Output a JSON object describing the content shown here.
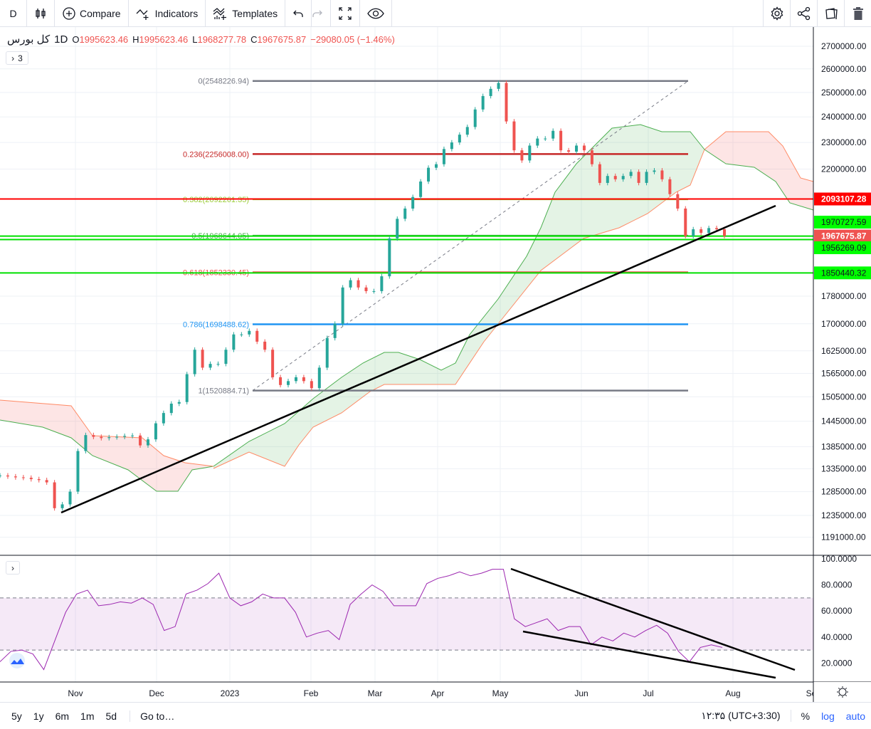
{
  "toolbar": {
    "interval": "D",
    "compare": "Compare",
    "indicators": "Indicators",
    "templates": "Templates"
  },
  "legend": {
    "symbol": "کل بورس",
    "interval": "1D",
    "o_label": "O",
    "o": "1995623.46",
    "h_label": "H",
    "h": "1995623.46",
    "l_label": "L",
    "l": "1968277.78",
    "c_label": "C",
    "c": "1967675.87",
    "change": "−29080.05 (−1.46%)",
    "indicator_count": "3"
  },
  "price_axis": {
    "ticks": [
      "2700000.00",
      "2600000.00",
      "2500000.00",
      "2400000.00",
      "2300000.00",
      "2200000.00",
      "1780000.00",
      "1700000.00",
      "1625000.00",
      "1565000.00",
      "1505000.00",
      "1445000.00",
      "1385000.00",
      "1335000.00",
      "1285000.00",
      "1235000.00",
      "1191000.00"
    ],
    "badges": [
      {
        "text": "2093107.28",
        "price": 2093107.28,
        "bg": "#ff0000",
        "fg": "#ffffff"
      },
      {
        "text": "1970727.59",
        "price": 1970727.59,
        "bg": "#00ff00",
        "fg": "#131722"
      },
      {
        "text": "1967675.87",
        "price": 1967675.87,
        "bg": "#ef5350",
        "fg": "#ffffff"
      },
      {
        "text": "1956269.09",
        "price": 1956269.09,
        "bg": "#00ff00",
        "fg": "#131722"
      },
      {
        "text": "1850440.32",
        "price": 1850440.32,
        "bg": "#00ff00",
        "fg": "#131722"
      }
    ]
  },
  "fib": [
    {
      "label": "0(2548226.94)",
      "price": 2548226.94,
      "color": "#787b86"
    },
    {
      "label": "0.236(2256008.00)",
      "price": 2256008.0,
      "color": "#c62828"
    },
    {
      "label": "0.382(2092261.35)",
      "price": 2092261.35,
      "color": "#9ccc39"
    },
    {
      "label": "0.5(1968644.05)",
      "price": 1968644.05,
      "color": "#4caf50"
    },
    {
      "label": "0.618(1852330.45)",
      "price": 1852330.45,
      "color": "#ef5350"
    },
    {
      "label": "0.786(1698488.62)",
      "price": 1698488.62,
      "color": "#2196f3"
    },
    {
      "label": "1(1520884.71)",
      "price": 1520884.71,
      "color": "#787b86"
    }
  ],
  "closes": [
    1320000,
    1318000,
    1316000,
    1315000,
    1312000,
    1310000,
    1305000,
    1250000,
    1258000,
    1285000,
    1375000,
    1412000,
    1408000,
    1405000,
    1407000,
    1408000,
    1410000,
    1411000,
    1388000,
    1402000,
    1440000,
    1465000,
    1488000,
    1492000,
    1563000,
    1628000,
    1580000,
    1590000,
    1590000,
    1628000,
    1670000,
    1670000,
    1680000,
    1650000,
    1628000,
    1555000,
    1535000,
    1545000,
    1555000,
    1545000,
    1527000,
    1580000,
    1660000,
    1700000,
    1806000,
    1828000,
    1806000,
    1795000,
    1795000,
    1840000,
    1960000,
    2025000,
    2060000,
    2100000,
    2155000,
    2205000,
    2218000,
    2275000,
    2300000,
    2330000,
    2360000,
    2430000,
    2485000,
    2515000,
    2540000,
    2382000,
    2270000,
    2232000,
    2288000,
    2315000,
    2315000,
    2345000,
    2270000,
    2265000,
    2288000,
    2270000,
    2218000,
    2150000,
    2175000,
    2163000,
    2175000,
    2190000,
    2150000,
    2190000,
    2195000,
    2163000,
    2110000,
    2060000,
    1968000,
    1990000,
    1978000,
    1994000,
    1990000,
    1968000
  ],
  "rsi": {
    "ticks": [
      "100.0000",
      "80.0000",
      "60.0000",
      "40.0000",
      "20.0000"
    ],
    "upper_band": 70,
    "lower_band": 30,
    "values": [
      21,
      29,
      30,
      27,
      15,
      37,
      59,
      73,
      76,
      64,
      65,
      67,
      66,
      70,
      65,
      45,
      48,
      73,
      76,
      81,
      89,
      70,
      64,
      67,
      73,
      70,
      70,
      59,
      40,
      43,
      45,
      38,
      65,
      73,
      80,
      75,
      64,
      64,
      64,
      81,
      85,
      87,
      90,
      87,
      89,
      92,
      92,
      54,
      48,
      51,
      54,
      45,
      48,
      48,
      34,
      40,
      37,
      43,
      40,
      45,
      49,
      43,
      29,
      21,
      32,
      34,
      32
    ]
  },
  "time_axis": [
    "Nov",
    "Dec",
    "2023",
    "Feb",
    "Mar",
    "Apr",
    "May",
    "Jun",
    "Jul",
    "Aug",
    "Se"
  ],
  "bottombar": {
    "ranges": [
      "5y",
      "1y",
      "6m",
      "1m",
      "5d"
    ],
    "goto": "Go to…",
    "time": "۱۲:۳۵ (UTC+3:30)",
    "percent": "%",
    "log": "log",
    "auto": "auto"
  },
  "colors": {
    "up": "#26a69a",
    "down": "#ef5350",
    "rsi": "#9c27b0",
    "trendline": "#000000"
  }
}
